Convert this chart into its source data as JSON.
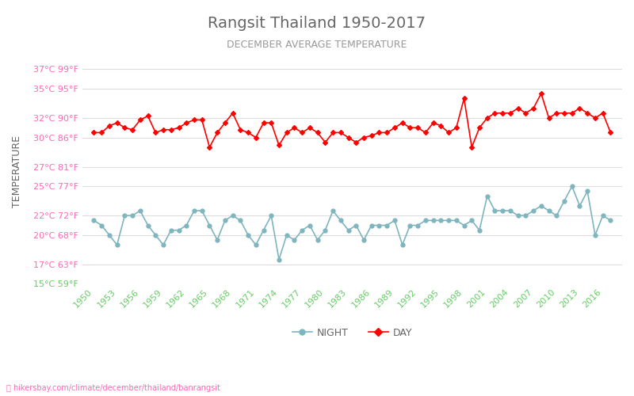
{
  "title": "Rangsit Thailand 1950-2017",
  "subtitle": "DECEMBER AVERAGE TEMPERATURE",
  "ylabel": "TEMPERATURE",
  "watermark": "hikersbay.com/climate/december/thailand/banrangsit",
  "ylim_c": [
    15,
    38
  ],
  "yticks_c": [
    15,
    17,
    20,
    22,
    25,
    27,
    30,
    32,
    35,
    37
  ],
  "ytick_labels": [
    "15°C 59°F",
    "17°C 63°F",
    "20°C 68°F",
    "22°C 72°F",
    "25°C 77°F",
    "27°C 81°F",
    "30°C 86°F",
    "32°C 90°F",
    "35°C 95°F",
    "37°C 99°F"
  ],
  "years": [
    1950,
    1951,
    1952,
    1953,
    1954,
    1955,
    1956,
    1957,
    1958,
    1959,
    1960,
    1961,
    1962,
    1963,
    1964,
    1965,
    1966,
    1967,
    1968,
    1969,
    1970,
    1971,
    1972,
    1973,
    1974,
    1975,
    1976,
    1977,
    1978,
    1979,
    1980,
    1981,
    1982,
    1983,
    1984,
    1985,
    1986,
    1987,
    1988,
    1989,
    1990,
    1991,
    1992,
    1993,
    1994,
    1995,
    1996,
    1997,
    1998,
    1999,
    2000,
    2001,
    2002,
    2003,
    2004,
    2005,
    2006,
    2007,
    2008,
    2009,
    2010,
    2011,
    2012,
    2013,
    2014,
    2015,
    2016,
    2017
  ],
  "day_temps": [
    30.5,
    30.5,
    31.2,
    31.5,
    31.0,
    30.8,
    31.8,
    32.2,
    30.5,
    30.8,
    30.8,
    31.0,
    31.5,
    31.8,
    31.8,
    29.0,
    30.5,
    31.5,
    32.5,
    30.8,
    30.5,
    30.0,
    31.5,
    31.5,
    29.2,
    30.5,
    31.0,
    30.5,
    31.0,
    30.5,
    29.5,
    30.5,
    30.5,
    30.0,
    29.5,
    30.0,
    30.2,
    30.5,
    30.5,
    31.0,
    31.5,
    31.0,
    31.0,
    30.5,
    31.5,
    31.2,
    30.5,
    31.0,
    34.0,
    29.0,
    31.0,
    32.0,
    32.5,
    32.5,
    32.5,
    33.0,
    32.5,
    33.0,
    34.5,
    32.0,
    32.5,
    32.5,
    32.5,
    33.0,
    32.5,
    32.0,
    32.5,
    30.5
  ],
  "night_temps": [
    21.5,
    21.0,
    20.0,
    19.0,
    22.0,
    22.0,
    22.5,
    21.0,
    20.0,
    19.0,
    20.5,
    20.5,
    21.0,
    22.5,
    22.5,
    21.0,
    19.5,
    21.5,
    22.0,
    21.5,
    20.0,
    19.0,
    20.5,
    22.0,
    17.5,
    20.0,
    19.5,
    20.5,
    21.0,
    19.5,
    20.5,
    22.5,
    21.5,
    20.5,
    21.0,
    19.5,
    21.0,
    21.0,
    21.0,
    21.5,
    19.0,
    21.0,
    21.0,
    21.5,
    21.5,
    21.5,
    21.5,
    21.5,
    21.0,
    21.5,
    20.5,
    24.0,
    22.5,
    22.5,
    22.5,
    22.0,
    22.0,
    22.5,
    23.0,
    22.5,
    22.0,
    23.5,
    25.0,
    23.0,
    24.5,
    20.0,
    22.0,
    21.5
  ],
  "day_color": "#ff0000",
  "night_color": "#7eb5bf",
  "title_color": "#666666",
  "subtitle_color": "#999999",
  "ylabel_color": "#666666",
  "ytick_color_normal": "#ff69b4",
  "ytick_color_15": "#66cc66",
  "grid_color": "#dddddd",
  "xtick_color": "#66cc66",
  "legend_night_color": "#7eb5bf",
  "legend_day_color": "#ff0000",
  "bg_color": "#ffffff"
}
